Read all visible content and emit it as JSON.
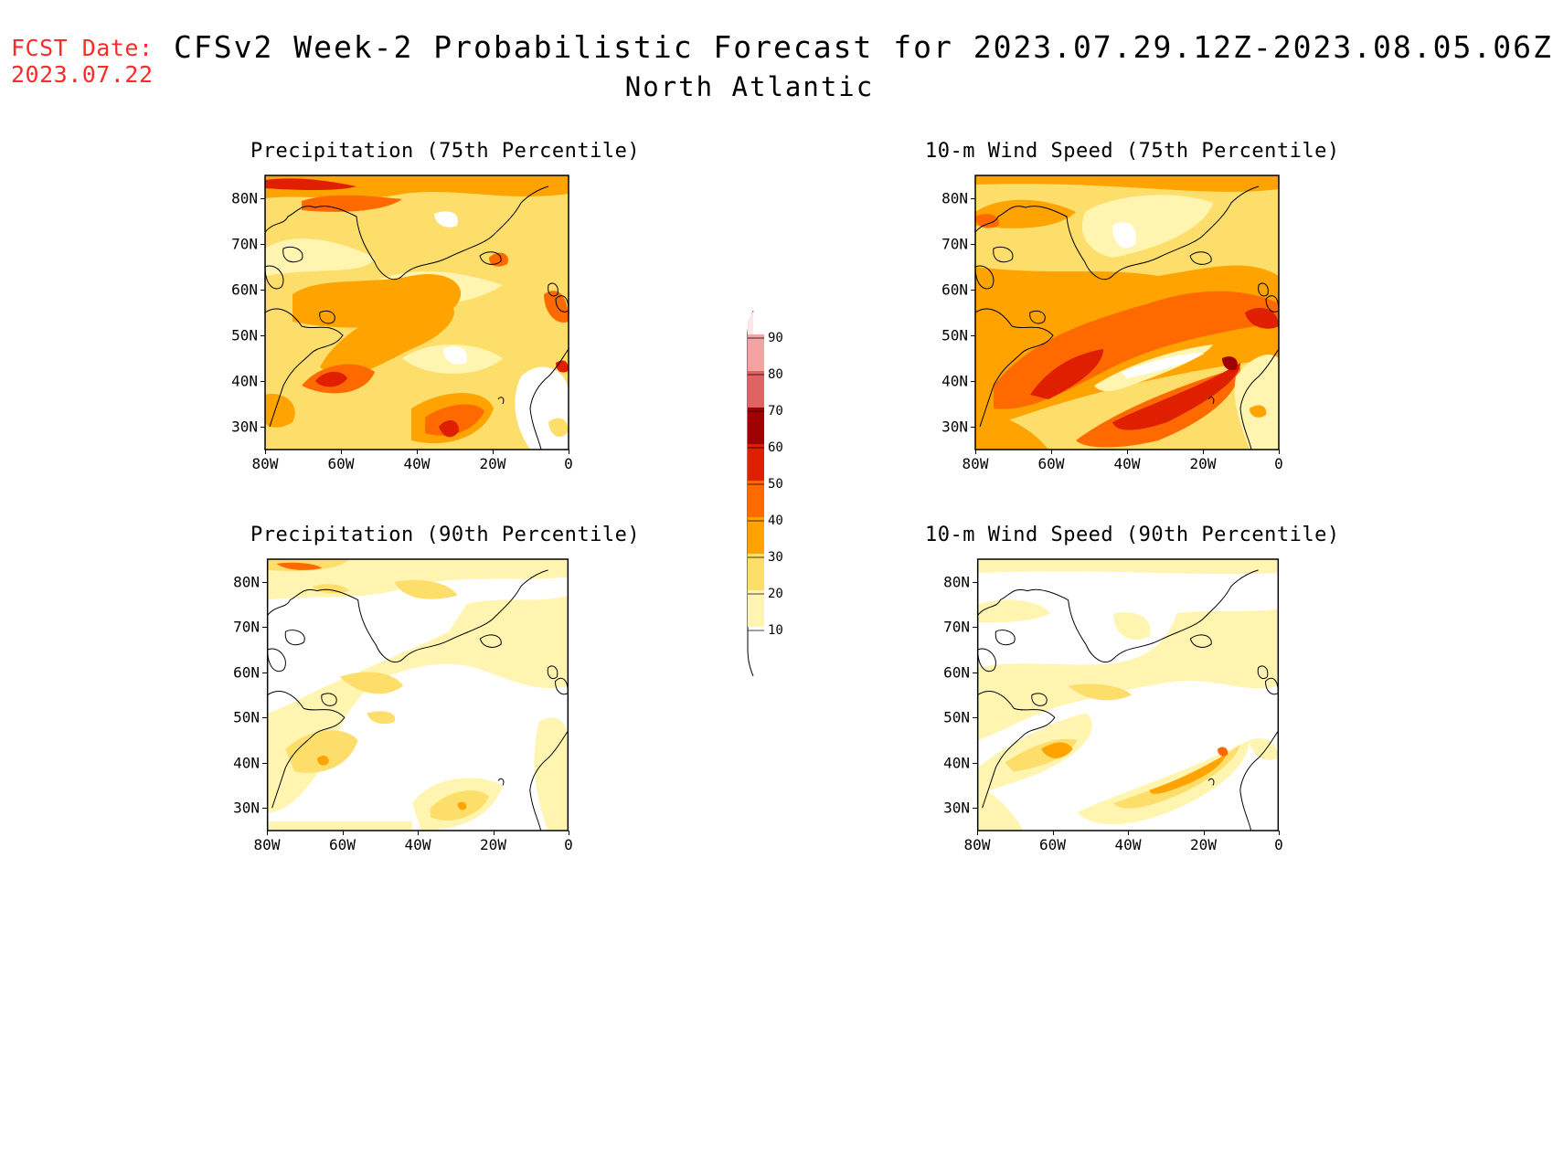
{
  "fcst_date": {
    "label": "FCST Date:",
    "value": "2023.07.22"
  },
  "title": "CFSv2 Week-2 Probabilistic Forecast for 2023.07.29.12Z-2023.08.05.06Z",
  "subtitle": "North Atlantic",
  "axes": {
    "lon_ticks": [
      "80W",
      "60W",
      "40W",
      "20W",
      "0"
    ],
    "lat_ticks": [
      "80N",
      "70N",
      "60N",
      "50N",
      "40N",
      "30N"
    ],
    "lon_range": [
      -80,
      0
    ],
    "lat_range": [
      25,
      85
    ]
  },
  "panels": [
    {
      "id": "precip75",
      "title": "Precipitation (75th Percentile)"
    },
    {
      "id": "wind75",
      "title": "10-m Wind Speed (75th Percentile)"
    },
    {
      "id": "precip90",
      "title": "Precipitation (90th Percentile)"
    },
    {
      "id": "wind90",
      "title": "10-m Wind Speed (90th Percentile)"
    }
  ],
  "colorbar": {
    "levels": [
      "90",
      "80",
      "70",
      "60",
      "50",
      "40",
      "30",
      "20",
      "10"
    ],
    "colors": [
      "#f4a3a3",
      "#de6464",
      "#a00000",
      "#e01e00",
      "#ff6a00",
      "#ffa300",
      "#fede6a",
      "#fff5b0"
    ]
  },
  "colors": {
    "fcst_date": "#ff2a2a",
    "c10": "#fff5b0",
    "c20": "#fede6a",
    "c30": "#ffa300",
    "c40": "#ff6a00",
    "c50": "#e01e00",
    "c60": "#a00000"
  }
}
